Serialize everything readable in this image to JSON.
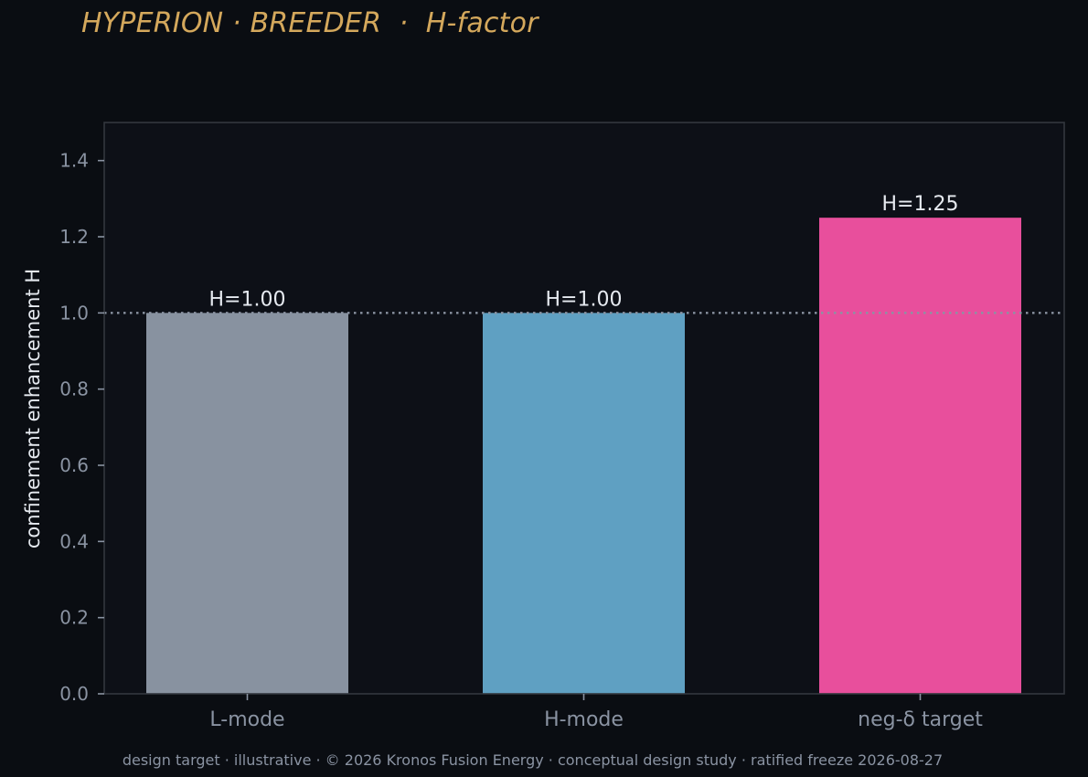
{
  "chart_data": {
    "type": "bar",
    "title": "HYPERION · BREEDER  ·  H-factor",
    "xlabel": "",
    "ylabel": "confinement enhancement H",
    "categories": [
      "L-mode",
      "H-mode",
      "neg-δ target"
    ],
    "values": [
      1.0,
      1.0,
      1.25
    ],
    "data_labels": [
      "H=1.00",
      "H=1.00",
      "H=1.25"
    ],
    "bar_colors": [
      "#8892a0",
      "#5fa0c2",
      "#e84f9c"
    ],
    "ylim": [
      0,
      1.5
    ],
    "yticks": [
      0.0,
      0.2,
      0.4,
      0.6,
      0.8,
      1.0,
      1.2,
      1.4
    ],
    "ytick_labels": [
      "0.0",
      "0.2",
      "0.4",
      "0.6",
      "0.8",
      "1.0",
      "1.2",
      "1.4"
    ],
    "reference_line": {
      "y": 1.0,
      "style": "dotted"
    },
    "grid": false,
    "legend": "none"
  },
  "footer": "design target · illustrative · © 2026 Kronos Fusion Energy · conceptual design study · ratified freeze 2026-08-27",
  "colors": {
    "background": "#0a0d12",
    "plot_background": "#0d1017",
    "title": "#d4a85c",
    "axis_text": "#8a93a2",
    "label_text": "#e6eaf0",
    "frame": "#33373e",
    "reference_line": "#8a93a2"
  }
}
